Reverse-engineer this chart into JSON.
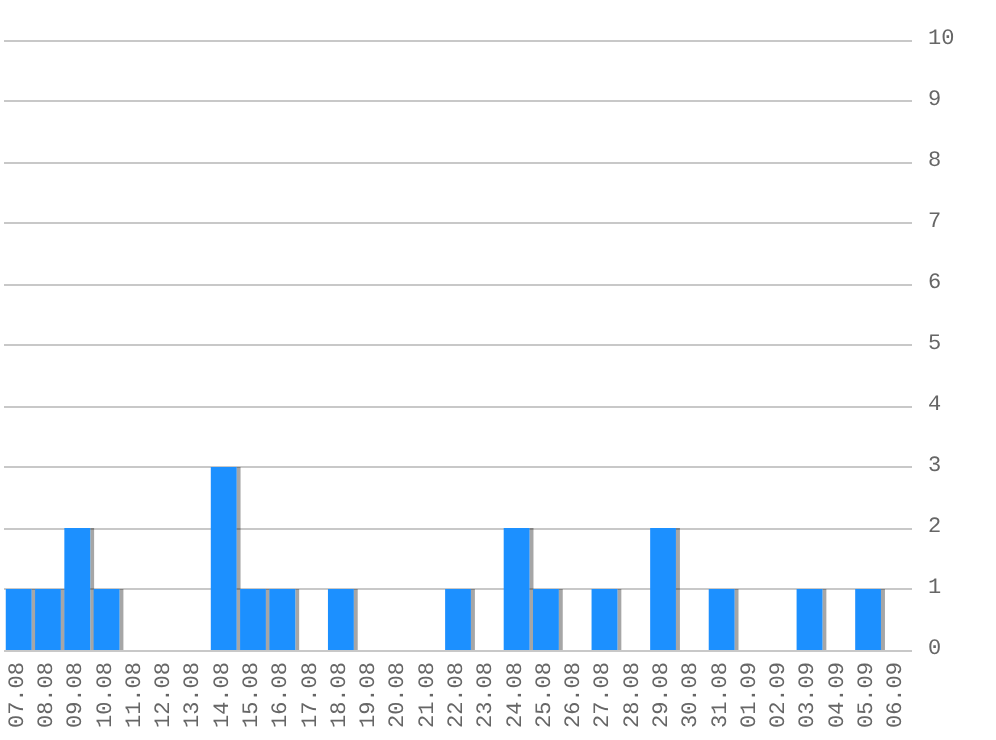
{
  "chart_data": {
    "type": "bar",
    "categories": [
      "07.08",
      "08.08",
      "09.08",
      "10.08",
      "11.08",
      "12.08",
      "13.08",
      "14.08",
      "15.08",
      "16.08",
      "17.08",
      "18.08",
      "19.08",
      "20.08",
      "21.08",
      "22.08",
      "23.08",
      "24.08",
      "25.08",
      "26.08",
      "27.08",
      "28.08",
      "29.08",
      "30.08",
      "31.08",
      "01.09",
      "02.09",
      "03.09",
      "04.09",
      "05.09",
      "06.09"
    ],
    "values": [
      1,
      1,
      2,
      1,
      0,
      0,
      0,
      3,
      1,
      1,
      0,
      1,
      0,
      0,
      0,
      1,
      0,
      2,
      1,
      0,
      1,
      0,
      2,
      0,
      1,
      0,
      0,
      1,
      0,
      1,
      0
    ],
    "color": "#1e90ff",
    "ylim": [
      0,
      10
    ],
    "yticks": [
      0,
      1,
      2,
      3,
      4,
      5,
      6,
      7,
      8,
      9,
      10
    ],
    "grid": "y"
  }
}
